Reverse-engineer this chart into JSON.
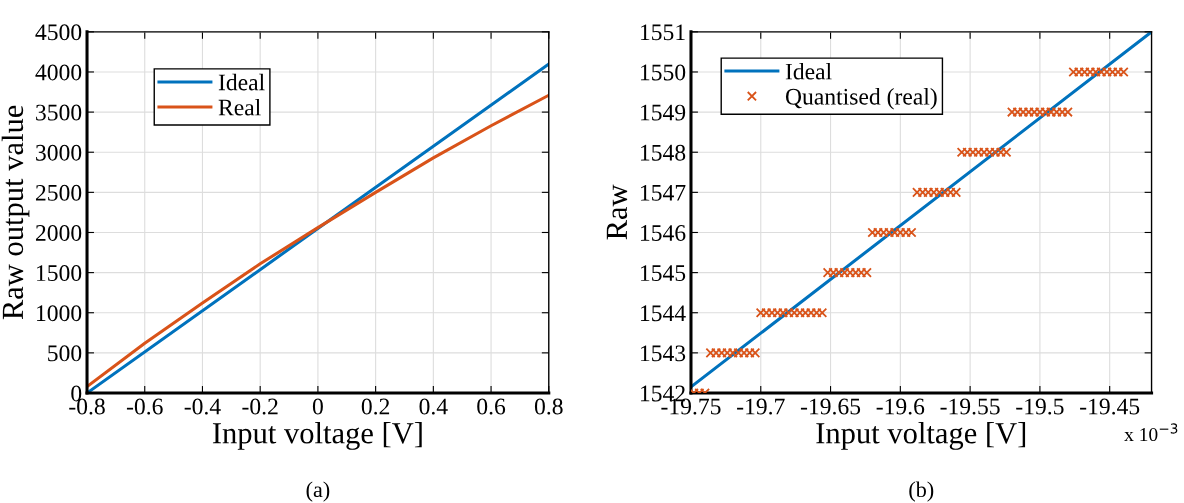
{
  "chart_data": [
    {
      "type": "line",
      "xlabel": "Input voltage [V]",
      "ylabel": "Raw output value",
      "xlim": [
        -0.8,
        0.8
      ],
      "ylim": [
        0,
        4500
      ],
      "xticks": [
        -0.8,
        -0.6,
        -0.4,
        -0.2,
        0,
        0.2,
        0.4,
        0.6,
        0.8
      ],
      "yticks": [
        0,
        500,
        1000,
        1500,
        2000,
        2500,
        3000,
        3500,
        4000,
        4500
      ],
      "grid": true,
      "legend": "top left",
      "annotations": [
        "(a)"
      ],
      "series": [
        {
          "name": "Ideal",
          "color": "#0072bd",
          "x": [
            -0.8,
            0.8
          ],
          "values": [
            0,
            4100
          ]
        },
        {
          "name": "Real",
          "color": "#d95319",
          "x": [
            -0.8,
            -0.6,
            -0.4,
            -0.2,
            0,
            0.2,
            0.4,
            0.6,
            0.8
          ],
          "values": [
            80,
            620,
            1120,
            1610,
            2060,
            2500,
            2930,
            3330,
            3710
          ]
        }
      ]
    },
    {
      "type": "scatter",
      "xlabel": "Input voltage [V]",
      "ylabel": "Raw",
      "xlim": [
        -19.75,
        -19.42
      ],
      "ylim": [
        1542,
        1551
      ],
      "xticks": [
        -19.75,
        -19.7,
        -19.65,
        -19.6,
        -19.55,
        -19.5,
        -19.45
      ],
      "yticks": [
        1542,
        1543,
        1544,
        1545,
        1546,
        1547,
        1548,
        1549,
        1550,
        1551
      ],
      "grid": true,
      "legend": "top left",
      "annotations": [
        "(b)",
        "x 10$^{−3}$"
      ],
      "series": [
        {
          "name": "Ideal",
          "type": "line",
          "color": "#0072bd",
          "x": [
            -19.75,
            -19.42
          ],
          "values": [
            1542.15,
            1551
          ]
        },
        {
          "name": "Quantised (real)",
          "marker": "cross",
          "color": "#d95319",
          "x": [
            -19.748,
            -19.744,
            -19.74,
            -19.736,
            -19.732,
            -19.728,
            -19.724,
            -19.72,
            -19.716,
            -19.712,
            -19.708,
            -19.704,
            -19.7,
            -19.696,
            -19.692,
            -19.688,
            -19.684,
            -19.68,
            -19.676,
            -19.672,
            -19.668,
            -19.664,
            -19.66,
            -19.656,
            -19.652,
            -19.648,
            -19.644,
            -19.64,
            -19.636,
            -19.632,
            -19.628,
            -19.624,
            -19.62,
            -19.616,
            -19.612,
            -19.608,
            -19.604,
            -19.6,
            -19.596,
            -19.592,
            -19.588,
            -19.584,
            -19.58,
            -19.576,
            -19.572,
            -19.568,
            -19.564,
            -19.56,
            -19.556,
            -19.552,
            -19.548,
            -19.544,
            -19.54,
            -19.536,
            -19.532,
            -19.528,
            -19.524,
            -19.52,
            -19.516,
            -19.512,
            -19.508,
            -19.504,
            -19.5,
            -19.496,
            -19.492,
            -19.488,
            -19.484,
            -19.48,
            -19.476,
            -19.472,
            -19.468,
            -19.464,
            -19.46,
            -19.456,
            -19.452,
            -19.448,
            -19.444,
            -19.44
          ],
          "values": [
            1542,
            1542,
            1542,
            1543,
            1543,
            1543,
            1543,
            1543,
            1543,
            1543,
            1543,
            1543,
            1544,
            1544,
            1544,
            1544,
            1544,
            1544,
            1544,
            1544,
            1544,
            1544,
            1544,
            1544,
            1545,
            1545,
            1545,
            1545,
            1545,
            1545,
            1545,
            1545,
            1546,
            1546,
            1546,
            1546,
            1546,
            1546,
            1546,
            1546,
            1547,
            1547,
            1547,
            1547,
            1547,
            1547,
            1547,
            1547,
            1548,
            1548,
            1548,
            1548,
            1548,
            1548,
            1548,
            1548,
            1548,
            1549,
            1549,
            1549,
            1549,
            1549,
            1549,
            1549,
            1549,
            1549,
            1549,
            1549,
            1550,
            1550,
            1550,
            1550,
            1550,
            1550,
            1550,
            1550,
            1550,
            1550
          ]
        }
      ]
    }
  ]
}
